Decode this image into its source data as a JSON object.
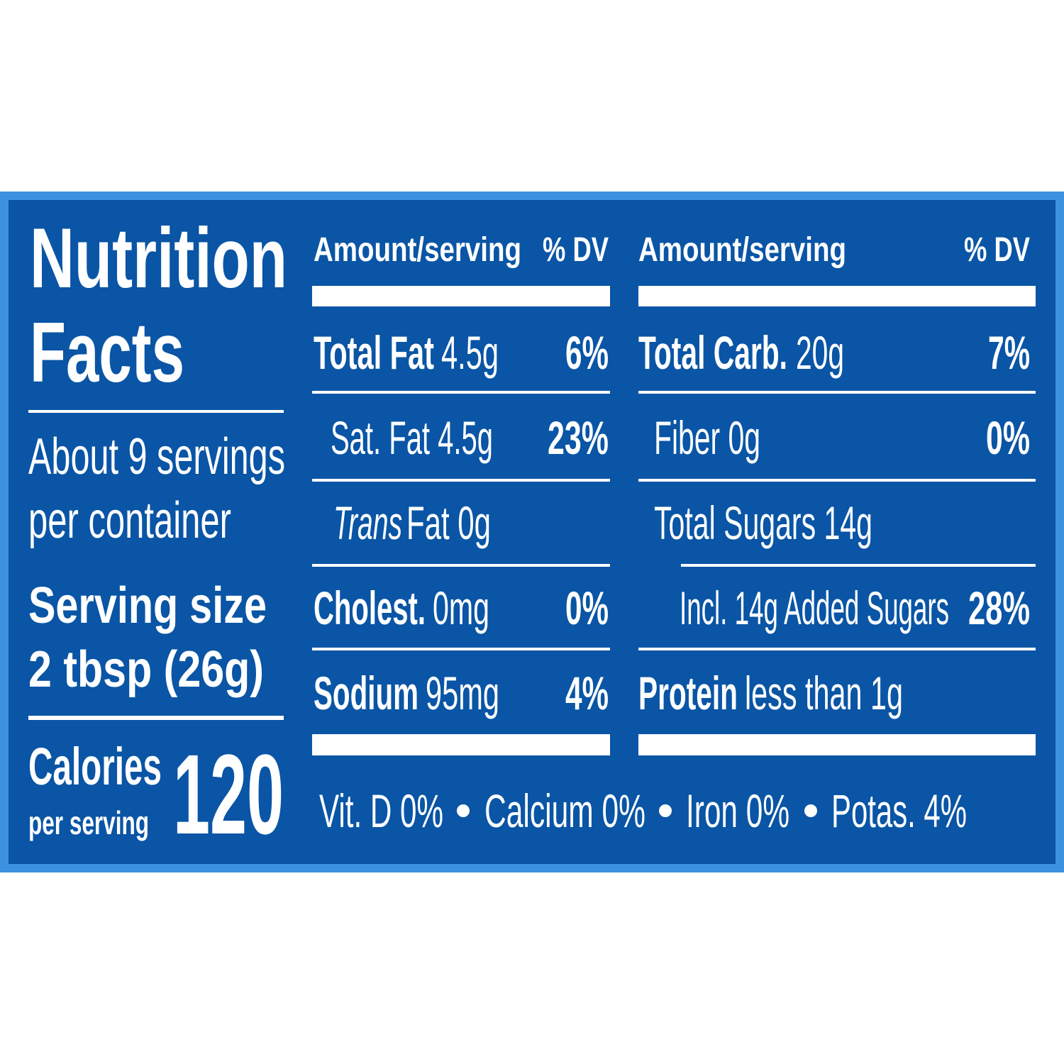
{
  "title": [
    "Nutrition",
    "Facts"
  ],
  "servings": [
    "About 9 servings",
    "per container"
  ],
  "serving_size": [
    "Serving size",
    "2 tbsp (26g)"
  ],
  "calories": {
    "label": "Calories",
    "sublabel": "per serving",
    "value": 120
  },
  "columns": [
    {
      "header": {
        "amount": "Amount/serving",
        "dv": "% DV"
      },
      "rows": [
        {
          "name": "Total Fat",
          "amount": "4.5g",
          "dv": "6%"
        },
        {
          "amount": "Sat. Fat 4.5g",
          "dv": "23%"
        },
        {
          "name": "Trans",
          "amount": "Fat 0g"
        },
        {
          "name": "Cholest.",
          "amount": "0mg",
          "dv": "0%"
        },
        {
          "name": "Sodium",
          "amount": "95mg",
          "dv": "4%"
        }
      ]
    },
    {
      "header": {
        "amount": "Amount/serving",
        "dv": "% DV"
      },
      "rows": [
        {
          "name": "Total Carb.",
          "amount": "20g",
          "dv": "7%"
        },
        {
          "amount": "Fiber 0g",
          "dv": "0%"
        },
        {
          "amount": "Total Sugars 14g"
        },
        {
          "amount": "Incl. 14g Added Sugars",
          "dv": "28%"
        },
        {
          "name": "Protein",
          "amount": "less than 1g"
        }
      ]
    }
  ],
  "vitamins": [
    "Vit. D 0%",
    "Calcium 0%",
    "Iron 0%",
    "Potas. 4%"
  ]
}
